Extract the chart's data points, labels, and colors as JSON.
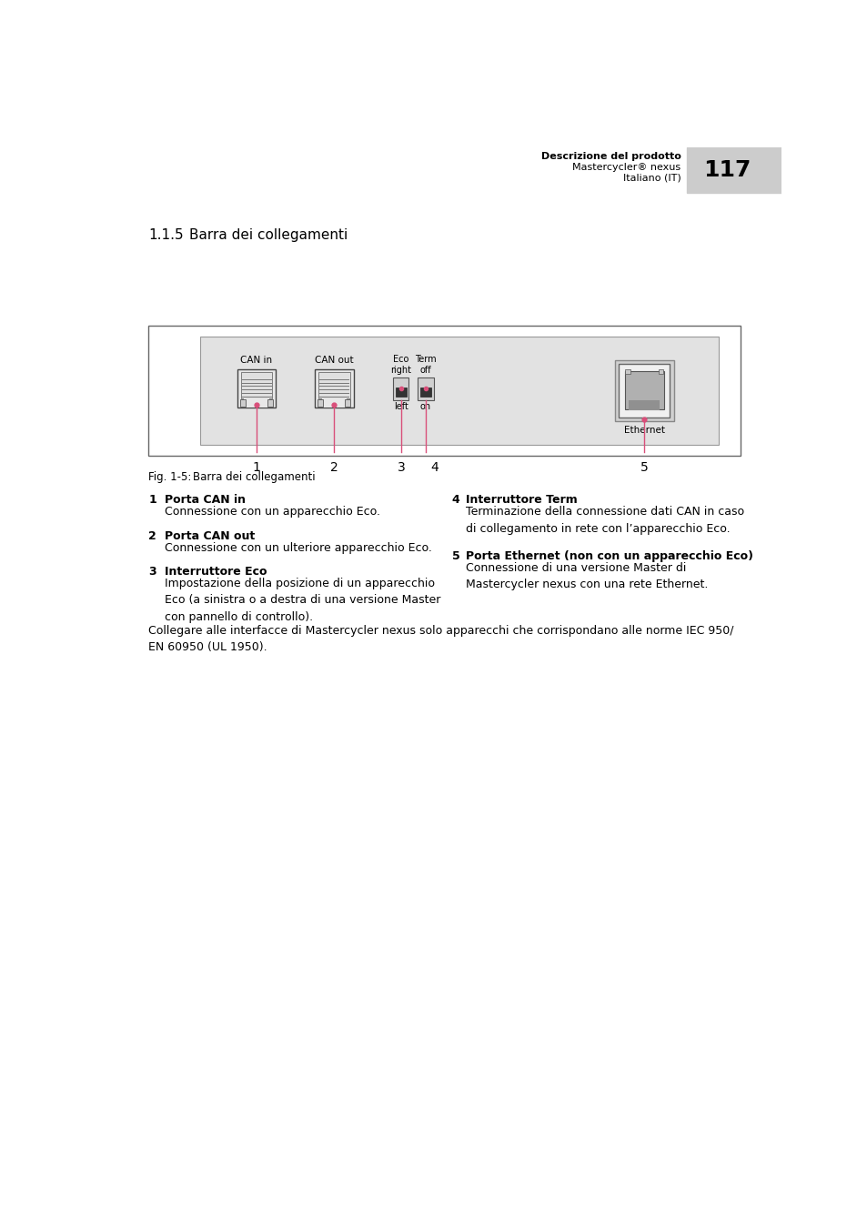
{
  "page_number": "117",
  "header_bold": "Descrizione del prodotto",
  "header_line2": "Mastercycler® nexus",
  "header_line3": "Italiano (IT)",
  "section_title": "1.1.5",
  "section_title2": "Barra dei collegamenti",
  "fig_caption": "Fig. 1-5:",
  "fig_caption2": "Barra dei collegamenti",
  "bg_color": "#ffffff",
  "header_bg": "#cccccc",
  "diagram_outer_bg": "#ffffff",
  "diagram_inner_bg": "#e2e2e2",
  "arrow_color": "#d94f7a",
  "text_color": "#000000",
  "items": [
    {
      "num": "1",
      "bold": "Porta CAN in",
      "text": "Connessione con un apparecchio Eco."
    },
    {
      "num": "2",
      "bold": "Porta CAN out",
      "text": "Connessione con un ulteriore apparecchio Eco."
    },
    {
      "num": "3",
      "bold": "Interruttore Eco",
      "text": "Impostazione della posizione di un apparecchio\nEco (a sinistra o a destra di una versione Master\ncon pannello di controllo)."
    },
    {
      "num": "4",
      "bold": "Interruttore Term",
      "text": "Terminazione della connessione dati CAN in caso\ndi collegamento in rete con l’apparecchio Eco."
    },
    {
      "num": "5",
      "bold": "Porta Ethernet (non con un apparecchio Eco)",
      "text": "Connessione di una versione Master di\nMastercycler nexus con una rete Ethernet."
    }
  ],
  "footer_note": "Collegare alle interfacce di Mastercycler nexus solo apparecchi che corrispondano alle norme IEC 950/\nEN 60950 (UL 1950)."
}
